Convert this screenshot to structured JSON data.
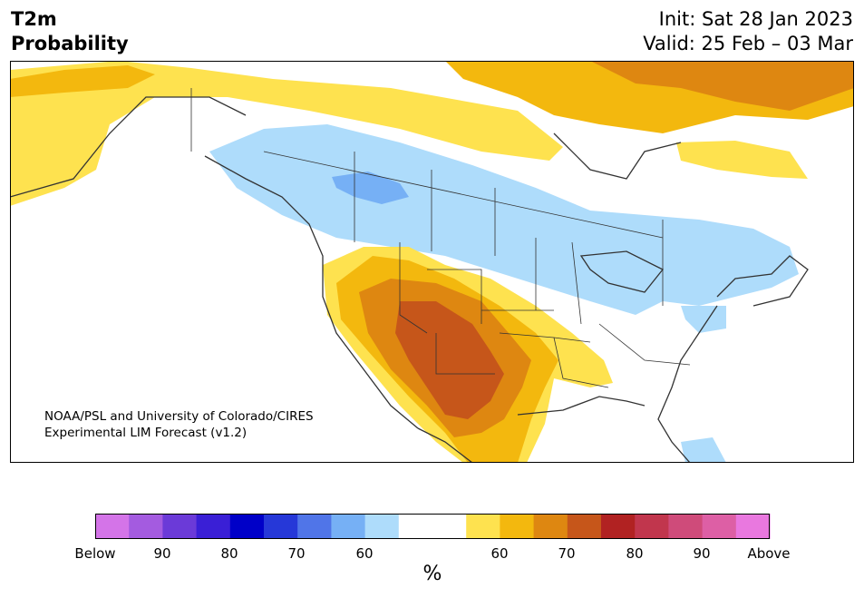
{
  "header": {
    "title_line1": "T2m",
    "title_line2": "Probability",
    "init": "Init: Sat 28 Jan 2023",
    "valid": "Valid: 25 Feb – 03 Mar"
  },
  "credit": {
    "line1": "NOAA/PSL and University of Colorado/CIRES",
    "line2": "Experimental LIM Forecast (v1.2)"
  },
  "colorbar": {
    "unit": "%",
    "colors": [
      "#d474e8",
      "#a45be0",
      "#6b3ad8",
      "#3a1fd6",
      "#0000c8",
      "#2638d8",
      "#5075e8",
      "#76b0f5",
      "#aedcfb",
      "#ffffff",
      "#ffffff",
      "#fee24f",
      "#f3b80e",
      "#de8711",
      "#c6561a",
      "#b12222",
      "#c1364d",
      "#cf4b7a",
      "#dd5fa5",
      "#e978df"
    ],
    "tick_labels": [
      "Below",
      "90",
      "80",
      "70",
      "60",
      "60",
      "70",
      "80",
      "90",
      "Above"
    ]
  },
  "legend_colors": {
    "below_60": "#aedcfb",
    "below_70": "#76b0f5",
    "above_60": "#fee24f",
    "above_70": "#f3b80e",
    "above_80": "#de8711",
    "above_90": "#c6561a"
  }
}
